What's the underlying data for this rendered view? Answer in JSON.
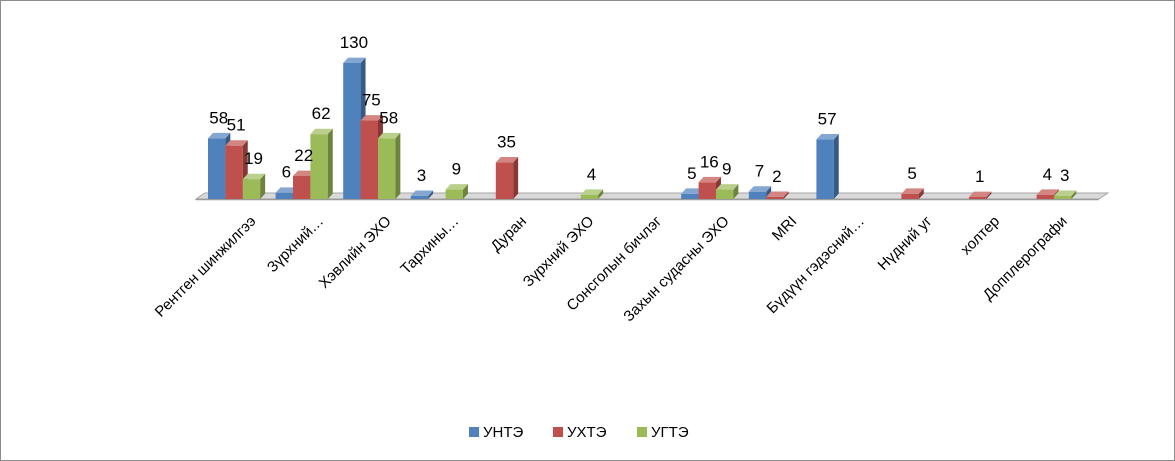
{
  "chart_data": {
    "type": "bar",
    "categories": [
      "Рентген шинжилгээ",
      "Зүрхний…",
      "Хэвлийн ЭХО",
      "Тархины…",
      "Дуран",
      "Зүрхний ЭХО",
      "Сонсголын бичлэг",
      "Захын судасны ЭХО",
      "MRI",
      "Бүдүүн гэдэсний…",
      "Нүдний уг",
      "холтер",
      "Допплерографи"
    ],
    "series": [
      {
        "name": "УНТЭ",
        "color": "#4f81bd",
        "values": [
          58,
          6,
          130,
          3,
          null,
          null,
          null,
          5,
          7,
          57,
          null,
          null,
          null
        ]
      },
      {
        "name": "УХТЭ",
        "color": "#c0504d",
        "values": [
          51,
          22,
          75,
          null,
          35,
          null,
          null,
          16,
          2,
          null,
          5,
          1,
          4
        ]
      },
      {
        "name": "УГТЭ",
        "color": "#9bbb59",
        "values": [
          19,
          62,
          58,
          9,
          null,
          4,
          null,
          9,
          null,
          null,
          null,
          null,
          3
        ]
      }
    ],
    "legend_position": "bottom",
    "grid": false,
    "ylim": [
      0,
      140
    ]
  }
}
